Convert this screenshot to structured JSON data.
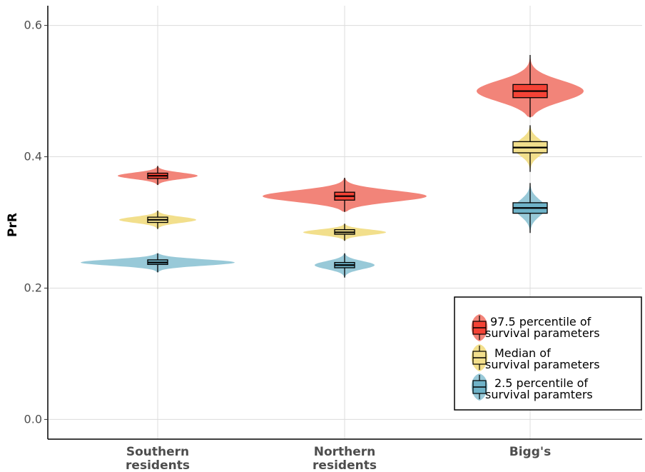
{
  "chart_data": {
    "type": "violin",
    "ylabel": "PrR",
    "ylim": [
      -0.03,
      0.63
    ],
    "yticks": [
      0.0,
      0.2,
      0.4,
      0.6
    ],
    "ytick_labels": [
      "0.0",
      "0.2",
      "0.4",
      "0.6"
    ],
    "categories": [
      {
        "line1": "Southern",
        "line2": "residents"
      },
      {
        "line1": "Northern",
        "line2": "residents"
      },
      {
        "line1": "Bigg's",
        "line2": ""
      }
    ],
    "grid": true,
    "legend_position": "bottom-right",
    "series": [
      {
        "legend_line1": "97.5 percentile of",
        "legend_line2": "survival parameters",
        "color": "#f28479",
        "box_color": "#f44336",
        "stats": [
          {
            "median": 0.371,
            "q1": 0.367,
            "q3": 0.375,
            "min": 0.357,
            "max": 0.386
          },
          {
            "median": 0.34,
            "q1": 0.334,
            "q3": 0.346,
            "min": 0.316,
            "max": 0.368
          },
          {
            "median": 0.5,
            "q1": 0.49,
            "q3": 0.51,
            "min": 0.46,
            "max": 0.555
          }
        ]
      },
      {
        "legend_line1": "Median of",
        "legend_line2": "survival parameters",
        "color": "#f2df8c",
        "box_color": "#f2df8c",
        "stats": [
          {
            "median": 0.304,
            "q1": 0.3,
            "q3": 0.308,
            "min": 0.29,
            "max": 0.318
          },
          {
            "median": 0.285,
            "q1": 0.282,
            "q3": 0.289,
            "min": 0.272,
            "max": 0.298
          },
          {
            "median": 0.414,
            "q1": 0.406,
            "q3": 0.423,
            "min": 0.377,
            "max": 0.448
          }
        ]
      },
      {
        "legend_line1": "2.5 percentile of",
        "legend_line2": "survival paramters",
        "color": "#98c9d8",
        "box_color": "#6fb3c8",
        "stats": [
          {
            "median": 0.239,
            "q1": 0.236,
            "q3": 0.243,
            "min": 0.224,
            "max": 0.253
          },
          {
            "median": 0.235,
            "q1": 0.231,
            "q3": 0.239,
            "min": 0.216,
            "max": 0.253
          },
          {
            "median": 0.322,
            "q1": 0.314,
            "q3": 0.33,
            "min": 0.284,
            "max": 0.36
          }
        ]
      }
    ]
  }
}
